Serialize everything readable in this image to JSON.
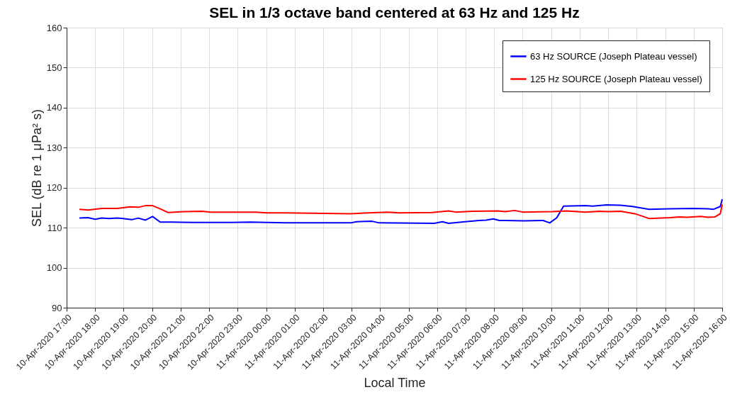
{
  "chart_data": {
    "type": "line",
    "title": "SEL in 1/3 octave band centered at 63 Hz and 125 Hz",
    "xlabel": "Local Time",
    "ylabel": "SEL (dB re 1 μPa² s)",
    "ylim": [
      90,
      160
    ],
    "yticks": [
      90,
      100,
      110,
      120,
      130,
      140,
      150,
      160
    ],
    "xlim": [
      "2020-04-10T17:00",
      "2020-04-11T16:00"
    ],
    "xticks": [
      {
        "value": "2020-04-10T17:00",
        "label": "10-Apr-2020 17:00"
      },
      {
        "value": "2020-04-10T18:00",
        "label": "10-Apr-2020 18:00"
      },
      {
        "value": "2020-04-10T19:00",
        "label": "10-Apr-2020 19:00"
      },
      {
        "value": "2020-04-10T20:00",
        "label": "10-Apr-2020 20:00"
      },
      {
        "value": "2020-04-10T21:00",
        "label": "10-Apr-2020 21:00"
      },
      {
        "value": "2020-04-10T22:00",
        "label": "10-Apr-2020 22:00"
      },
      {
        "value": "2020-04-10T23:00",
        "label": "10-Apr-2020 23:00"
      },
      {
        "value": "2020-04-11T00:00",
        "label": "11-Apr-2020 00:00"
      },
      {
        "value": "2020-04-11T01:00",
        "label": "11-Apr-2020 01:00"
      },
      {
        "value": "2020-04-11T02:00",
        "label": "11-Apr-2020 02:00"
      },
      {
        "value": "2020-04-11T03:00",
        "label": "11-Apr-2020 03:00"
      },
      {
        "value": "2020-04-11T04:00",
        "label": "11-Apr-2020 04:00"
      },
      {
        "value": "2020-04-11T05:00",
        "label": "11-Apr-2020 05:00"
      },
      {
        "value": "2020-04-11T06:00",
        "label": "11-Apr-2020 06:00"
      },
      {
        "value": "2020-04-11T07:00",
        "label": "11-Apr-2020 07:00"
      },
      {
        "value": "2020-04-11T08:00",
        "label": "11-Apr-2020 08:00"
      },
      {
        "value": "2020-04-11T09:00",
        "label": "11-Apr-2020 09:00"
      },
      {
        "value": "2020-04-11T10:00",
        "label": "11-Apr-2020 10:00"
      },
      {
        "value": "2020-04-11T11:00",
        "label": "11-Apr-2020 11:00"
      },
      {
        "value": "2020-04-11T12:00",
        "label": "11-Apr-2020 12:00"
      },
      {
        "value": "2020-04-11T13:00",
        "label": "11-Apr-2020 13:00"
      },
      {
        "value": "2020-04-11T14:00",
        "label": "11-Apr-2020 14:00"
      },
      {
        "value": "2020-04-11T15:00",
        "label": "11-Apr-2020 15:00"
      },
      {
        "value": "2020-04-11T16:00",
        "label": "11-Apr-2020 16:00"
      }
    ],
    "grid": true,
    "legend": "top right",
    "series": [
      {
        "name": "63 Hz SOURCE (Joseph Plateau vessel)",
        "color": "#0000ff",
        "x": [
          "2020-04-10T17:27",
          "2020-04-10T17:45",
          "2020-04-10T18:00",
          "2020-04-10T18:14",
          "2020-04-10T18:29",
          "2020-04-10T18:47",
          "2020-04-10T18:59",
          "2020-04-10T19:17",
          "2020-04-10T19:31",
          "2020-04-10T19:46",
          "2020-04-10T20:01",
          "2020-04-10T20:17",
          "2020-04-10T20:43",
          "2020-04-10T21:28",
          "2020-04-10T22:47",
          "2020-04-10T23:27",
          "2020-04-11T00:01",
          "2020-04-11T00:41",
          "2020-04-11T02:58",
          "2020-04-11T03:10",
          "2020-04-11T03:43",
          "2020-04-11T03:58",
          "2020-04-11T05:54",
          "2020-04-11T06:11",
          "2020-04-11T06:24",
          "2020-04-11T06:59",
          "2020-04-11T07:28",
          "2020-04-11T07:43",
          "2020-04-11T07:58",
          "2020-04-11T08:11",
          "2020-04-11T08:23",
          "2020-04-11T09:03",
          "2020-04-11T09:43",
          "2020-04-11T09:57",
          "2020-04-11T10:12",
          "2020-04-11T10:26",
          "2020-04-11T11:12",
          "2020-04-11T11:27",
          "2020-04-11T11:57",
          "2020-04-11T12:26",
          "2020-04-11T12:51",
          "2020-04-11T13:26",
          "2020-04-11T14:10",
          "2020-04-11T15:00",
          "2020-04-11T15:30",
          "2020-04-11T15:42",
          "2020-04-11T15:56",
          "2020-04-11T16:00"
        ],
        "values": [
          112.4,
          112.5,
          112.1,
          112.4,
          112.3,
          112.4,
          112.3,
          112.0,
          112.4,
          111.9,
          112.8,
          111.4,
          111.4,
          111.3,
          111.3,
          111.4,
          111.3,
          111.2,
          111.2,
          111.5,
          111.6,
          111.2,
          111.1,
          111.5,
          111.1,
          111.5,
          111.8,
          111.9,
          112.2,
          111.8,
          111.8,
          111.7,
          111.8,
          111.2,
          112.5,
          115.4,
          115.5,
          115.4,
          115.7,
          115.6,
          115.3,
          114.6,
          114.7,
          114.8,
          114.7,
          114.6,
          115.3,
          117.1
        ]
      },
      {
        "name": "125 Hz SOURCE (Joseph Plateau vessel)",
        "color": "#ff0000",
        "x": [
          "2020-04-10T17:27",
          "2020-04-10T17:45",
          "2020-04-10T18:14",
          "2020-04-10T18:47",
          "2020-04-10T19:14",
          "2020-04-10T19:31",
          "2020-04-10T19:46",
          "2020-04-10T20:01",
          "2020-04-10T20:19",
          "2020-04-10T20:33",
          "2020-04-10T21:08",
          "2020-04-10T21:45",
          "2020-04-10T22:03",
          "2020-04-10T23:37",
          "2020-04-11T00:02",
          "2020-04-11T00:41",
          "2020-04-11T02:58",
          "2020-04-11T04:15",
          "2020-04-11T04:40",
          "2020-04-11T05:49",
          "2020-04-11T06:24",
          "2020-04-11T06:39",
          "2020-04-11T07:14",
          "2020-04-11T08:08",
          "2020-04-11T08:23",
          "2020-04-11T08:43",
          "2020-04-11T09:00",
          "2020-04-11T10:02",
          "2020-04-11T10:32",
          "2020-04-11T11:12",
          "2020-04-11T11:41",
          "2020-04-11T12:01",
          "2020-04-11T12:26",
          "2020-04-11T12:56",
          "2020-04-11T13:26",
          "2020-04-11T14:10",
          "2020-04-11T14:31",
          "2020-04-11T14:45",
          "2020-04-11T15:15",
          "2020-04-11T15:30",
          "2020-04-11T15:45",
          "2020-04-11T15:56",
          "2020-04-11T16:00"
        ],
        "values": [
          114.6,
          114.4,
          114.8,
          114.8,
          115.2,
          115.1,
          115.5,
          115.5,
          114.6,
          113.8,
          114.0,
          114.1,
          113.9,
          113.9,
          113.7,
          113.7,
          113.5,
          113.9,
          113.7,
          113.8,
          114.2,
          113.9,
          114.1,
          114.2,
          114.0,
          114.3,
          113.9,
          114.0,
          114.2,
          113.9,
          114.1,
          114.0,
          114.1,
          113.5,
          112.3,
          112.5,
          112.7,
          112.6,
          112.8,
          112.6,
          112.7,
          113.5,
          115.8
        ]
      }
    ]
  }
}
